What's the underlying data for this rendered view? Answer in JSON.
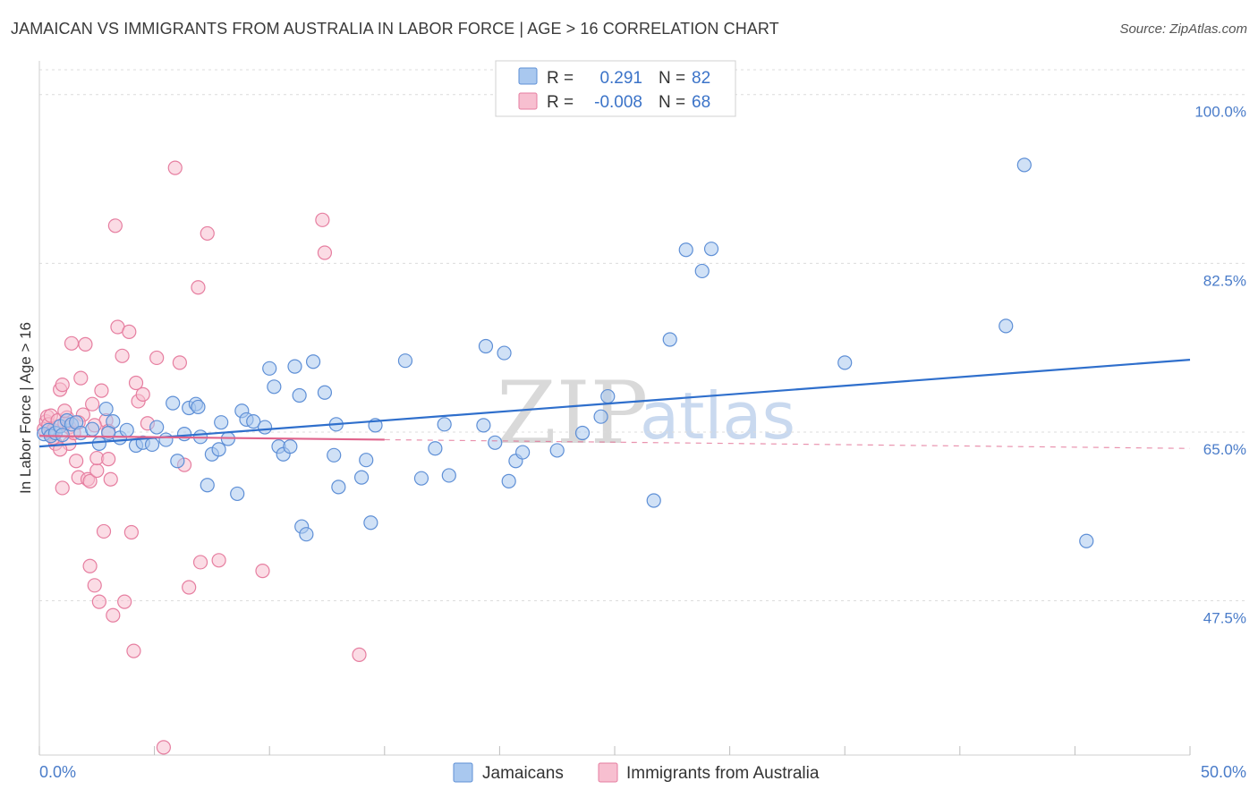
{
  "title": "JAMAICAN VS IMMIGRANTS FROM AUSTRALIA IN LABOR FORCE | AGE > 16 CORRELATION CHART",
  "source": "Source: ZipAtlas.com",
  "watermark": {
    "zip": "ZIP",
    "atlas": "atlas"
  },
  "colors": {
    "blue_fill": "#a9c8ef",
    "blue_stroke": "#5e8fd6",
    "blue_line": "#2f6fcc",
    "pink_fill": "#f7bfd0",
    "pink_stroke": "#e67ea0",
    "pink_line": "#e0648c",
    "axis_text": "#4a7cc9",
    "grid": "#dcdcdc"
  },
  "legend": {
    "rows": [
      {
        "r_label": "R =",
        "r_value": "0.291",
        "n_label": "N =",
        "n_value": "82",
        "series": "blue"
      },
      {
        "r_label": "R =",
        "r_value": "-0.008",
        "n_label": "N =",
        "n_value": "68",
        "series": "pink"
      }
    ]
  },
  "bottom_legend": [
    {
      "label": "Jamaicans",
      "series": "blue"
    },
    {
      "label": "Immigrants from Australia",
      "series": "pink"
    }
  ],
  "chart_data": {
    "type": "scatter",
    "title": "JAMAICAN VS IMMIGRANTS FROM AUSTRALIA IN LABOR FORCE | AGE > 16 CORRELATION CHART",
    "xlabel": "",
    "ylabel": "In Labor Force | Age > 16",
    "xlim": [
      0,
      50
    ],
    "ylim": [
      31.5,
      103.5
    ],
    "x_tick_labels": [
      "0.0%",
      "50.0%"
    ],
    "y_ticks": [
      47.5,
      65.0,
      82.5,
      100.0
    ],
    "y_tick_labels": [
      "47.5%",
      "65.0%",
      "82.5%",
      "100.0%"
    ],
    "grid": true,
    "series": [
      {
        "name": "Jamaicans",
        "color": "blue",
        "trend": {
          "x": [
            0,
            50
          ],
          "y": [
            63.5,
            72.5
          ],
          "dashed_from": null
        },
        "points": [
          [
            0.2,
            64.8
          ],
          [
            0.4,
            65.2
          ],
          [
            0.5,
            64.6
          ],
          [
            0.7,
            64.9
          ],
          [
            0.9,
            65.6
          ],
          [
            1.0,
            64.7
          ],
          [
            1.2,
            66.2
          ],
          [
            1.4,
            65.8
          ],
          [
            1.6,
            66.0
          ],
          [
            1.8,
            64.9
          ],
          [
            2.3,
            65.3
          ],
          [
            2.6,
            63.8
          ],
          [
            2.9,
            67.4
          ],
          [
            3.2,
            66.1
          ],
          [
            3.5,
            64.4
          ],
          [
            3.8,
            65.2
          ],
          [
            4.2,
            63.6
          ],
          [
            4.5,
            63.9
          ],
          [
            4.9,
            63.7
          ],
          [
            5.1,
            65.5
          ],
          [
            5.5,
            64.2
          ],
          [
            5.8,
            68.0
          ],
          [
            6.0,
            62.0
          ],
          [
            6.3,
            64.8
          ],
          [
            6.5,
            67.5
          ],
          [
            6.8,
            67.9
          ],
          [
            7.0,
            64.5
          ],
          [
            7.3,
            59.5
          ],
          [
            7.5,
            62.7
          ],
          [
            7.8,
            63.2
          ],
          [
            7.9,
            66.0
          ],
          [
            8.2,
            64.3
          ],
          [
            8.6,
            58.6
          ],
          [
            8.8,
            67.2
          ],
          [
            9.0,
            66.3
          ],
          [
            9.3,
            66.1
          ],
          [
            9.8,
            65.5
          ],
          [
            10.0,
            71.6
          ],
          [
            10.2,
            69.7
          ],
          [
            10.4,
            63.5
          ],
          [
            10.6,
            62.7
          ],
          [
            10.9,
            63.5
          ],
          [
            11.1,
            71.8
          ],
          [
            11.3,
            68.8
          ],
          [
            11.4,
            55.2
          ],
          [
            11.6,
            54.4
          ],
          [
            11.9,
            72.3
          ],
          [
            12.4,
            69.1
          ],
          [
            12.8,
            62.6
          ],
          [
            12.9,
            65.8
          ],
          [
            13.0,
            59.3
          ],
          [
            14.0,
            60.3
          ],
          [
            14.2,
            62.1
          ],
          [
            14.4,
            55.6
          ],
          [
            14.6,
            65.7
          ],
          [
            15.9,
            72.4
          ],
          [
            16.6,
            60.2
          ],
          [
            17.2,
            63.3
          ],
          [
            17.6,
            65.8
          ],
          [
            17.8,
            60.5
          ],
          [
            19.3,
            65.7
          ],
          [
            19.4,
            73.9
          ],
          [
            19.8,
            63.9
          ],
          [
            20.2,
            73.2
          ],
          [
            20.4,
            59.9
          ],
          [
            20.7,
            62.0
          ],
          [
            21.0,
            62.9
          ],
          [
            22.5,
            63.1
          ],
          [
            23.6,
            64.9
          ],
          [
            24.4,
            66.6
          ],
          [
            24.7,
            68.7
          ],
          [
            26.7,
            57.9
          ],
          [
            27.4,
            74.6
          ],
          [
            28.1,
            83.9
          ],
          [
            28.8,
            81.7
          ],
          [
            29.2,
            84.0
          ],
          [
            35.0,
            72.2
          ],
          [
            42.8,
            92.7
          ],
          [
            45.5,
            53.7
          ],
          [
            42.0,
            76.0
          ],
          [
            6.9,
            67.6
          ],
          [
            3.0,
            64.9
          ]
        ]
      },
      {
        "name": "Immigrants from Australia",
        "color": "pink",
        "trend": {
          "x": [
            0,
            50
          ],
          "y": [
            64.6,
            63.3
          ],
          "dashed_from": 15
        },
        "points": [
          [
            0.2,
            65.3
          ],
          [
            0.3,
            66.1
          ],
          [
            0.35,
            66.6
          ],
          [
            0.4,
            65.8
          ],
          [
            0.5,
            64.8
          ],
          [
            0.5,
            66.7
          ],
          [
            0.6,
            65.2
          ],
          [
            0.7,
            63.8
          ],
          [
            0.8,
            66.2
          ],
          [
            0.9,
            69.4
          ],
          [
            1.0,
            69.9
          ],
          [
            1.0,
            59.2
          ],
          [
            1.1,
            65.9
          ],
          [
            1.2,
            66.5
          ],
          [
            1.3,
            63.8
          ],
          [
            1.3,
            65.5
          ],
          [
            1.4,
            74.2
          ],
          [
            1.5,
            64.9
          ],
          [
            1.6,
            62.0
          ],
          [
            1.7,
            60.3
          ],
          [
            1.8,
            70.6
          ],
          [
            1.9,
            66.8
          ],
          [
            2.0,
            74.1
          ],
          [
            2.1,
            60.1
          ],
          [
            2.2,
            59.9
          ],
          [
            2.2,
            51.1
          ],
          [
            2.3,
            67.9
          ],
          [
            2.4,
            49.1
          ],
          [
            2.5,
            61.0
          ],
          [
            2.5,
            62.3
          ],
          [
            2.6,
            47.4
          ],
          [
            2.7,
            69.3
          ],
          [
            2.8,
            54.7
          ],
          [
            2.9,
            66.2
          ],
          [
            3.0,
            65.1
          ],
          [
            3.0,
            62.2
          ],
          [
            3.1,
            60.1
          ],
          [
            3.2,
            46.0
          ],
          [
            3.3,
            86.4
          ],
          [
            3.4,
            75.9
          ],
          [
            3.6,
            72.9
          ],
          [
            3.7,
            47.4
          ],
          [
            3.9,
            75.4
          ],
          [
            4.0,
            54.6
          ],
          [
            4.1,
            42.3
          ],
          [
            4.2,
            70.1
          ],
          [
            4.3,
            68.2
          ],
          [
            4.5,
            68.9
          ],
          [
            4.7,
            65.9
          ],
          [
            5.1,
            72.7
          ],
          [
            5.4,
            32.3
          ],
          [
            5.9,
            92.4
          ],
          [
            6.1,
            72.2
          ],
          [
            6.3,
            61.6
          ],
          [
            6.5,
            48.9
          ],
          [
            6.9,
            80.0
          ],
          [
            7.0,
            51.5
          ],
          [
            7.3,
            85.6
          ],
          [
            7.8,
            51.7
          ],
          [
            9.7,
            50.6
          ],
          [
            12.3,
            87.0
          ],
          [
            12.4,
            83.6
          ],
          [
            13.9,
            41.9
          ],
          [
            0.6,
            64.4
          ],
          [
            1.1,
            67.2
          ],
          [
            0.9,
            63.2
          ],
          [
            2.4,
            65.7
          ],
          [
            1.7,
            66.0
          ]
        ]
      }
    ]
  },
  "axes": {
    "y_label": "In Labor Force | Age > 16",
    "x_min_label": "0.0%",
    "x_max_label": "50.0%"
  }
}
